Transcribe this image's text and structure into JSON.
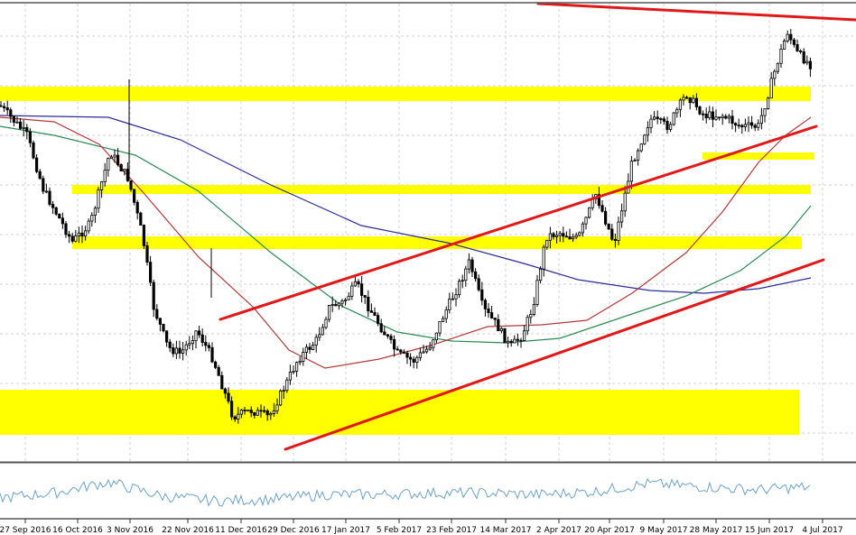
{
  "chart_data": {
    "type": "line",
    "title": "",
    "xlabel": "",
    "ylabel": "",
    "grid": true,
    "x_labels": [
      "27 Sep 2016",
      "16 Oct 2016",
      "3 Nov 2016",
      "22 Nov 2016",
      "11 Dec 2016",
      "29 Dec 2016",
      "17 Jan 2017",
      "5 Feb 2017",
      "23 Feb 2017",
      "14 Mar 2017",
      "2 Apr 2017",
      "20 Apr 2017",
      "9 May 2017",
      "28 May 2017",
      "15 Jun 2017",
      "4 Jul 2017"
    ],
    "price_series": [
      {
        "x": "27 Sep 2016",
        "y": 117
      },
      {
        "x": "7 Oct 2016",
        "y": 150
      },
      {
        "x": "12 Oct 2016",
        "y": 210
      },
      {
        "x": "16 Oct 2016",
        "y": 268
      },
      {
        "x": "22 Oct 2016",
        "y": 248
      },
      {
        "x": "30 Oct 2016",
        "y": 168
      },
      {
        "x": "3 Nov 2016",
        "y": 198
      },
      {
        "x": "8 Nov 2016",
        "y": 262
      },
      {
        "x": "14 Nov 2016",
        "y": 340
      },
      {
        "x": "20 Nov 2016",
        "y": 385
      },
      {
        "x": "26 Nov 2016",
        "y": 392
      },
      {
        "x": "2 Dec 2016",
        "y": 366
      },
      {
        "x": "8 Dec 2016",
        "y": 398
      },
      {
        "x": "14 Dec 2016",
        "y": 462
      },
      {
        "x": "20 Dec 2016",
        "y": 455
      },
      {
        "x": "26 Dec 2016",
        "y": 462
      },
      {
        "x": "30 Dec 2016",
        "y": 423
      },
      {
        "x": "5 Jan 2017",
        "y": 398
      },
      {
        "x": "12 Jan 2017",
        "y": 378
      },
      {
        "x": "18 Jan 2017",
        "y": 340
      },
      {
        "x": "24 Jan 2017",
        "y": 335
      },
      {
        "x": "29 Jan 2017",
        "y": 315
      },
      {
        "x": "5 Feb 2017",
        "y": 340
      },
      {
        "x": "10 Feb 2017",
        "y": 368
      },
      {
        "x": "16 Feb 2017",
        "y": 392
      },
      {
        "x": "23 Feb 2017",
        "y": 400
      },
      {
        "x": "1 Mar 2017",
        "y": 385
      },
      {
        "x": "6 Mar 2017",
        "y": 352
      },
      {
        "x": "12 Mar 2017",
        "y": 322
      },
      {
        "x": "16 Mar 2017",
        "y": 290
      },
      {
        "x": "21 Mar 2017",
        "y": 342
      },
      {
        "x": "27 Mar 2017",
        "y": 360
      },
      {
        "x": "2 Apr 2017",
        "y": 385
      },
      {
        "x": "7 Apr 2017",
        "y": 372
      },
      {
        "x": "12 Apr 2017",
        "y": 340
      },
      {
        "x": "16 Apr 2017",
        "y": 262
      },
      {
        "x": "21 Apr 2017",
        "y": 258
      },
      {
        "x": "27 Apr 2017",
        "y": 265
      },
      {
        "x": "3 May 2017",
        "y": 215
      },
      {
        "x": "6 May 2017",
        "y": 270
      },
      {
        "x": "10 May 2017",
        "y": 180
      },
      {
        "x": "15 May 2017",
        "y": 132
      },
      {
        "x": "21 May 2017",
        "y": 140
      },
      {
        "x": "27 May 2017",
        "y": 104
      },
      {
        "x": "1 Jun 2017",
        "y": 128
      },
      {
        "x": "7 Jun 2017",
        "y": 128
      },
      {
        "x": "12 Jun 2017",
        "y": 140
      },
      {
        "x": "17 Jun 2017",
        "y": 140
      },
      {
        "x": "22 Jun 2017",
        "y": 72
      },
      {
        "x": "27 Jun 2017",
        "y": 35
      },
      {
        "x": "2 Jul 2017",
        "y": 58
      },
      {
        "x": "5 Jul 2017",
        "y": 72
      }
    ],
    "oscillator": [
      {
        "x": "27 Sep 2016",
        "y": 0.35
      },
      {
        "x": "14 Oct 2016",
        "y": 0.5
      },
      {
        "x": "3 Nov 2016",
        "y": 0.85
      },
      {
        "x": "22 Nov 2016",
        "y": 0.4
      },
      {
        "x": "11 Dec 2016",
        "y": 0.25
      },
      {
        "x": "29 Dec 2016",
        "y": 0.3
      },
      {
        "x": "17 Jan 2017",
        "y": 0.45
      },
      {
        "x": "5 Feb 2017",
        "y": 0.45
      },
      {
        "x": "23 Feb 2017",
        "y": 0.5
      },
      {
        "x": "14 Mar 2017",
        "y": 0.5
      },
      {
        "x": "2 Apr 2017",
        "y": 0.45
      },
      {
        "x": "20 Apr 2017",
        "y": 0.55
      },
      {
        "x": "9 May 2017",
        "y": 0.8
      },
      {
        "x": "28 May 2017",
        "y": 0.7
      },
      {
        "x": "15 Jun 2017",
        "y": 0.6
      },
      {
        "x": "4 Jul 2017",
        "y": 0.7
      }
    ],
    "moving_averages": [
      {
        "color": "#2b2b9b",
        "points": [
          [
            0,
            128
          ],
          [
            120,
            130
          ],
          [
            200,
            155
          ],
          [
            300,
            205
          ],
          [
            400,
            250
          ],
          [
            500,
            270
          ],
          [
            580,
            292
          ],
          [
            640,
            310
          ],
          [
            720,
            322
          ],
          [
            780,
            325
          ],
          [
            840,
            320
          ],
          [
            898,
            308
          ]
        ]
      },
      {
        "color": "#2e8b57",
        "points": [
          [
            0,
            140
          ],
          [
            60,
            150
          ],
          [
            150,
            172
          ],
          [
            220,
            212
          ],
          [
            300,
            280
          ],
          [
            380,
            340
          ],
          [
            440,
            368
          ],
          [
            500,
            378
          ],
          [
            560,
            380
          ],
          [
            620,
            375
          ],
          [
            700,
            348
          ],
          [
            760,
            328
          ],
          [
            820,
            300
          ],
          [
            870,
            262
          ],
          [
            898,
            228
          ]
        ]
      },
      {
        "color": "#b23a3a",
        "points": [
          [
            0,
            130
          ],
          [
            60,
            135
          ],
          [
            110,
            160
          ],
          [
            160,
            215
          ],
          [
            220,
            285
          ],
          [
            280,
            340
          ],
          [
            320,
            388
          ],
          [
            360,
            408
          ],
          [
            420,
            398
          ],
          [
            480,
            382
          ],
          [
            540,
            362
          ],
          [
            600,
            360
          ],
          [
            650,
            355
          ],
          [
            700,
            325
          ],
          [
            760,
            280
          ],
          [
            800,
            235
          ],
          [
            840,
            180
          ],
          [
            870,
            150
          ],
          [
            898,
            130
          ]
        ]
      }
    ],
    "support_resistance_zones": [
      {
        "label": "zone-1"
      },
      {
        "label": "zone-2"
      },
      {
        "label": "zone-3"
      },
      {
        "label": "zone-4"
      },
      {
        "label": "zone-5"
      }
    ],
    "trendlines": [
      {
        "name": "upper-channel",
        "color": "#e01818"
      },
      {
        "name": "lower-channel",
        "color": "#e01818"
      },
      {
        "name": "top-resistance",
        "color": "#e01818"
      }
    ],
    "colors": {
      "zone": "#ffff00",
      "trendline": "#e01818",
      "candle": "#000000",
      "oscillator": "#6aa3c9",
      "grid": "#d0d0d0"
    }
  }
}
